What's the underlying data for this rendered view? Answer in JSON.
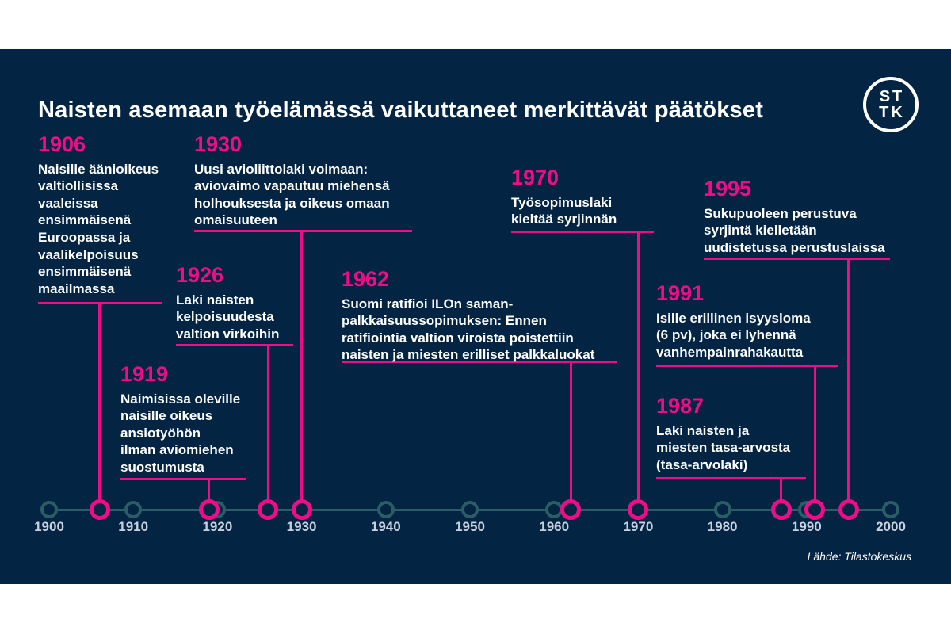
{
  "title": "Naisten asemaan työelämässä vaikuttaneet merkittävät päätökset",
  "logo": {
    "line1": "ST",
    "line2": "TK"
  },
  "source": "Lähde: Tilastokeskus",
  "colors": {
    "page_background": "#ffffff",
    "canvas_background": "#032442",
    "accent_magenta": "#ee0d87",
    "axis_teal": "#2b5d66",
    "axis_label": "#c8d1e0",
    "text_white": "#ffffff"
  },
  "timeline": {
    "start_year": 1900,
    "end_year": 2000,
    "decades": [
      {
        "year": 1900,
        "label": "1900"
      },
      {
        "year": 1910,
        "label": "1910"
      },
      {
        "year": 1920,
        "label": "1920"
      },
      {
        "year": 1930,
        "label": "1930"
      },
      {
        "year": 1940,
        "label": "1940"
      },
      {
        "year": 1950,
        "label": "1950"
      },
      {
        "year": 1960,
        "label": "1960"
      },
      {
        "year": 1970,
        "label": "1970"
      },
      {
        "year": 1980,
        "label": "1980"
      },
      {
        "year": 1990,
        "label": "1990"
      },
      {
        "year": 2000,
        "label": "2000"
      }
    ]
  },
  "events": [
    {
      "year": 1906,
      "label": "1906",
      "text": "Naisille äänioikeus\nvaltiollisissa\nvaaleissa\nensimmäisenä\nEuroopassa ja\nvaalikelpoisuus\nensimmäisenä\nmaailmassa"
    },
    {
      "year": 1919,
      "label": "1919",
      "text": "Naimisissa oleville\nnaisille oikeus\nansiotyöhön\nilman aviomiehen\nsuostumusta"
    },
    {
      "year": 1926,
      "label": "1926",
      "text": "Laki naisten\nkelpoisuudesta\nvaltion virkoihin"
    },
    {
      "year": 1930,
      "label": "1930",
      "text": "Uusi avioliittolaki voimaan:\naviovaimo vapautuu miehensä\nholhouksesta ja oikeus omaan\nomaisuuteen"
    },
    {
      "year": 1962,
      "label": "1962",
      "text": "Suomi ratifioi ILOn saman-\npalkkaisuussopimuksen: Ennen\nratifiointia valtion viroista poistettiin\nnaisten ja miesten erilliset palkkaluokat"
    },
    {
      "year": 1970,
      "label": "1970",
      "text": "Työsopimuslaki\nkieltää syrjinnän"
    },
    {
      "year": 1987,
      "label": "1987",
      "text": "Laki naisten ja\nmiesten tasa-arvosta\n(tasa-arvolaki)"
    },
    {
      "year": 1991,
      "label": "1991",
      "text": "Isille erillinen isyysloma\n(6 pv), joka ei lyhennä\nvanhempainrahakautta"
    },
    {
      "year": 1995,
      "label": "1995",
      "text": "Sukupuoleen perustuva\nsyrjintä kielletään\nuudistetussa perustuslaissa"
    }
  ]
}
